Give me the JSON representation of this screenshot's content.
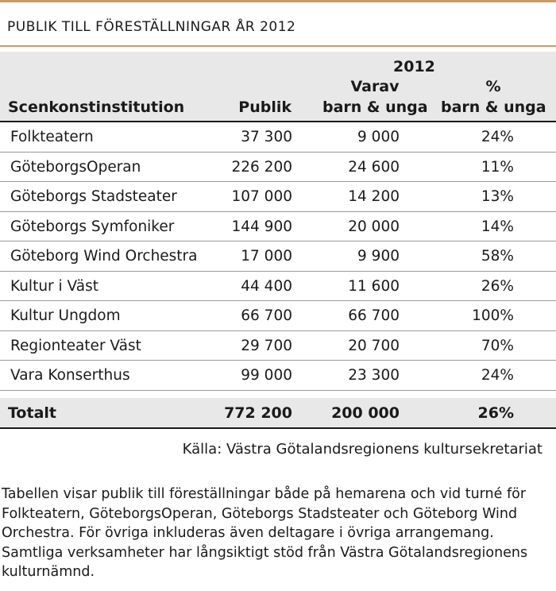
{
  "title": "PUBLIK TILL FÖRESTÄLLNINGAR ÅR 2012",
  "header": {
    "year": "2012",
    "col_name": "Scenkonstinstitution",
    "col_publik": "Publik",
    "col_kids_line1": "Varav",
    "col_kids_line2": "barn & unga",
    "col_pct_line1": "%",
    "col_pct_line2": "barn & unga"
  },
  "rows": [
    {
      "name": "Folkteatern",
      "publik": "37 300",
      "kids": "9 000",
      "pct": "24%"
    },
    {
      "name": "GöteborgsOperan",
      "publik": "226 200",
      "kids": "24 600",
      "pct": "11%"
    },
    {
      "name": "Göteborgs Stadsteater",
      "publik": "107 000",
      "kids": "14 200",
      "pct": "13%"
    },
    {
      "name": "Göteborgs Symfoniker",
      "publik": "144 900",
      "kids": "20 000",
      "pct": "14%"
    },
    {
      "name": "Göteborg Wind Orchestra",
      "publik": "17 000",
      "kids": "9 900",
      "pct": "58%"
    },
    {
      "name": "Kultur i Väst",
      "publik": "44 400",
      "kids": "11 600",
      "pct": "26%"
    },
    {
      "name": "Kultur Ungdom",
      "publik": "66 700",
      "kids": "66 700",
      "pct": "100%"
    },
    {
      "name": "Regionteater Väst",
      "publik": "29 700",
      "kids": "20 700",
      "pct": "70%"
    },
    {
      "name": "Vara Konserthus",
      "publik": "99 000",
      "kids": "23 300",
      "pct": "24%"
    }
  ],
  "total": {
    "name": "Totalt",
    "publik": "772 200",
    "kids": "200 000",
    "pct": "26%"
  },
  "source": "Källa: Västra Götalandsregionens kultursekretariat",
  "footnote": "Tabellen visar publik till föreställningar både på hemarena och vid turné för Folkteatern, GöteborgsOperan, Göteborgs Stadsteater och Göteborg Wind Orchestra. För övriga inkluderas även deltagare i övriga arrangemang. Samtliga verksamheter har långsiktigt stöd från Västra Götalandsregionens kulturnämnd.",
  "colors": {
    "accent_rule": "#c69a6b",
    "header_bg": "#e8e8e8",
    "text": "#1a1a1a"
  }
}
